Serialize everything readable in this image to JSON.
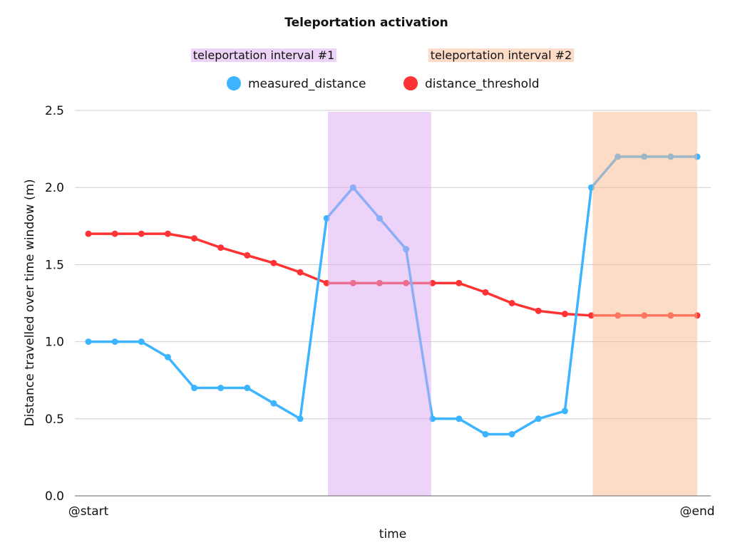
{
  "chart_data": {
    "type": "line",
    "title": "Teleportation activation",
    "xlabel": "time",
    "ylabel": "Distance travelled over time window (m)",
    "x_tick_labels": [
      "@start",
      "@end"
    ],
    "ylim": [
      0,
      2.5
    ],
    "y_ticks": [
      "0.0",
      "0.5",
      "1.0",
      "1.5",
      "2.0",
      "2.5"
    ],
    "grid": "horizontal",
    "legend_placement": "top-center",
    "x": [
      0,
      1,
      2,
      3,
      4,
      5,
      6,
      7,
      8,
      9,
      10,
      11,
      12,
      13,
      14,
      15,
      16,
      17,
      18,
      19,
      20,
      21,
      22,
      23
    ],
    "series": [
      {
        "name": "measured_distance",
        "color": "#3cb4ff",
        "values": [
          1.0,
          1.0,
          1.0,
          0.9,
          0.7,
          0.7,
          0.7,
          0.6,
          0.5,
          1.8,
          2.0,
          1.8,
          1.6,
          0.5,
          0.5,
          0.4,
          0.4,
          0.5,
          0.55,
          2.0,
          2.2,
          2.2,
          2.2,
          2.2
        ]
      },
      {
        "name": "distance_threshold",
        "color": "#ff3333",
        "values": [
          1.7,
          1.7,
          1.7,
          1.7,
          1.67,
          1.61,
          1.56,
          1.51,
          1.45,
          1.38,
          1.38,
          1.38,
          1.38,
          1.38,
          1.38,
          1.32,
          1.25,
          1.2,
          1.18,
          1.17,
          1.17,
          1.17,
          1.17,
          1.17
        ]
      }
    ],
    "intervals": [
      {
        "label": "teleportation interval #1",
        "start": 9.05,
        "end": 12.95,
        "color": "#dba7ef"
      },
      {
        "label": "teleportation interval #2",
        "start": 19.05,
        "end": 23.0,
        "color": "#fcb98f"
      }
    ]
  }
}
